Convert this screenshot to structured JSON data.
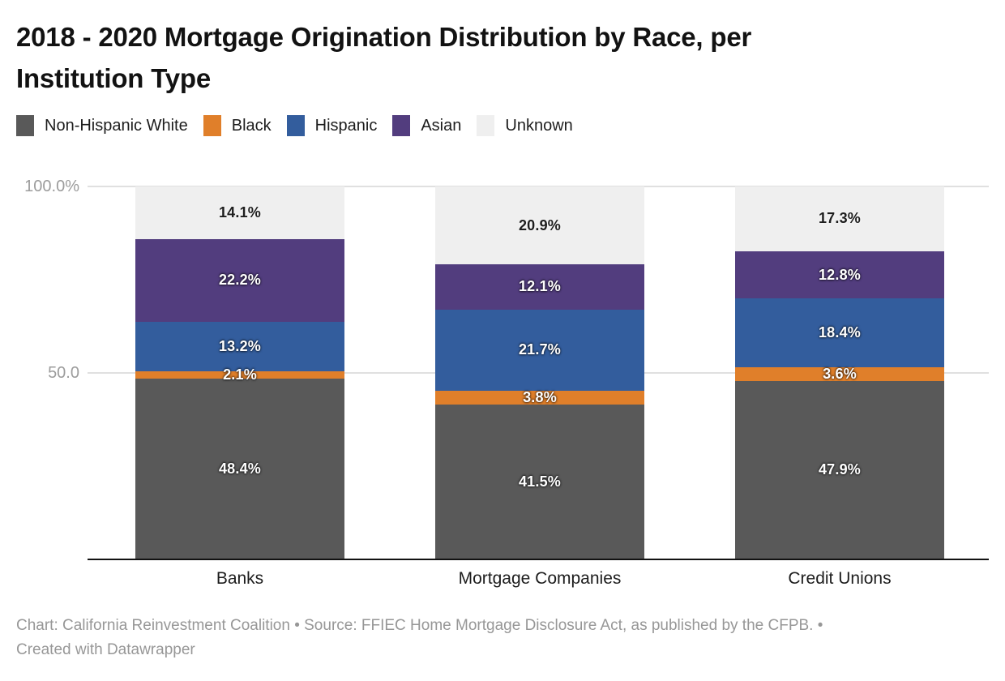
{
  "header": {
    "title_lines": [
      "2018 - 2020 Mortgage Origination Distribution by Race, per",
      "Institution Type"
    ]
  },
  "legend": {
    "items": [
      {
        "label": "Non-Hispanic White",
        "color": "#595959"
      },
      {
        "label": "Black",
        "color": "#e07f2a"
      },
      {
        "label": "Hispanic",
        "color": "#335d9d"
      },
      {
        "label": "Asian",
        "color": "#523d7e"
      },
      {
        "label": "Unknown",
        "color": "#efefef"
      }
    ]
  },
  "axis": {
    "y_ticks": [
      {
        "label": "100.0%",
        "value": 100
      },
      {
        "label": "50.0",
        "value": 50
      }
    ],
    "x_labels": [
      "Banks",
      "Mortgage Companies",
      "Credit Unions"
    ]
  },
  "chart_data": {
    "type": "bar",
    "stacked": true,
    "title": "2018 - 2020 Mortgage Origination Distribution by Race, per Institution Type",
    "categories": [
      "Banks",
      "Mortgage Companies",
      "Credit Unions"
    ],
    "series": [
      {
        "name": "Non-Hispanic White",
        "color": "#595959",
        "label_style": "light",
        "values": [
          48.4,
          41.5,
          47.9
        ]
      },
      {
        "name": "Black",
        "color": "#e07f2a",
        "label_style": "light",
        "values": [
          2.1,
          3.8,
          3.6
        ]
      },
      {
        "name": "Hispanic",
        "color": "#335d9d",
        "label_style": "light",
        "values": [
          13.2,
          21.7,
          18.4
        ]
      },
      {
        "name": "Asian",
        "color": "#523d7e",
        "label_style": "light",
        "values": [
          22.2,
          12.1,
          12.8
        ]
      },
      {
        "name": "Unknown",
        "color": "#efefef",
        "label_style": "dark",
        "values": [
          14.1,
          20.9,
          17.3
        ]
      }
    ],
    "value_suffix": "%",
    "ylim": [
      0,
      100
    ],
    "grid": true,
    "legend_position": "top",
    "xlabel": "",
    "ylabel": ""
  },
  "footer": {
    "lines": [
      "Chart: California Reinvestment Coalition • Source: FFIEC Home Mortgage Disclosure Act, as published by the CFPB. •",
      "Created with Datawrapper"
    ]
  }
}
